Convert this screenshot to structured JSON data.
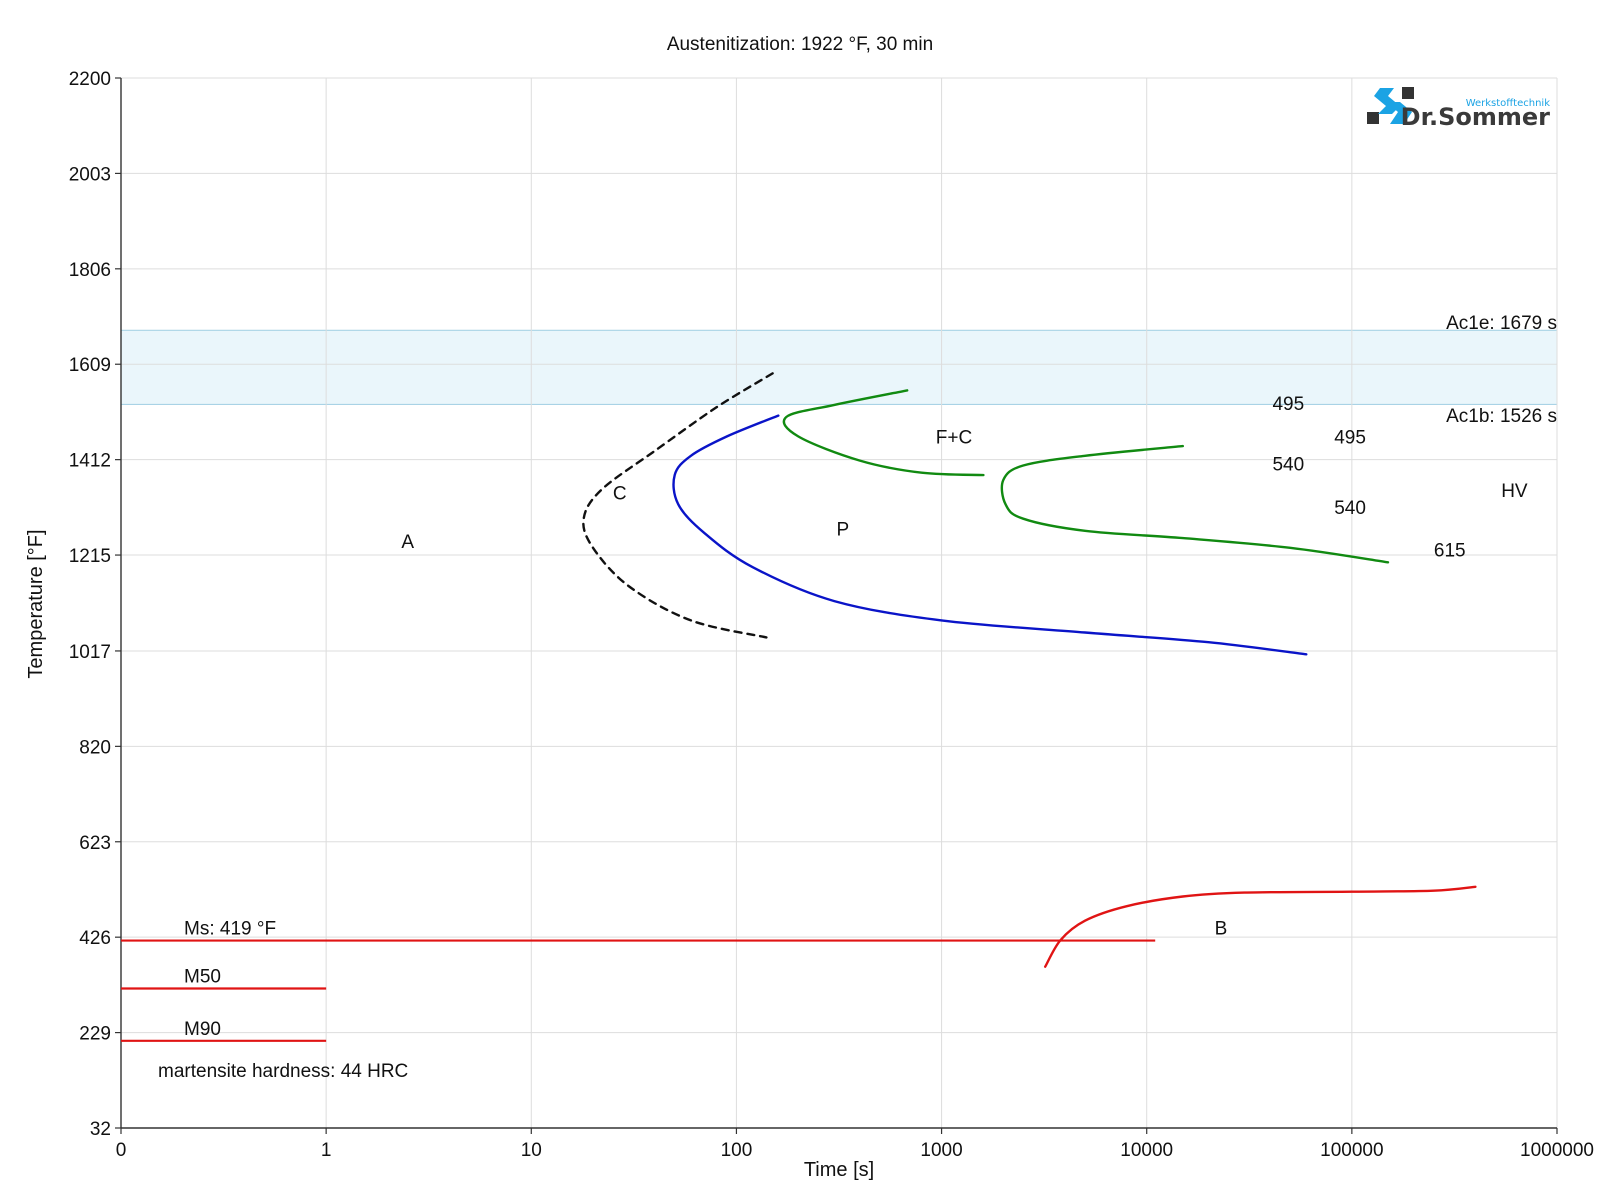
{
  "chart_data": {
    "type": "line",
    "title": "Austenitization: 1922 °F, 30 min",
    "xlabel": "Time [s]",
    "ylabel": "Temperature [°F]",
    "x_scale": "log",
    "x_ticks": [
      "0",
      "1",
      "10",
      "100",
      "1000",
      "10000",
      "100000",
      "1000000"
    ],
    "y_ticks": [
      32,
      229,
      426,
      623,
      820,
      1017,
      1215,
      1412,
      1609,
      1806,
      2003,
      2200
    ],
    "ylim": [
      32,
      2200
    ],
    "grid": true,
    "ac_band": {
      "low": 1526,
      "high": 1679,
      "color": "#eaf6fb"
    },
    "ac_labels": {
      "upper": "Ac1e: 1679 s",
      "lower": "Ac1b: 1526 s"
    },
    "series": [
      {
        "color": "#111111",
        "dash": true,
        "points": [
          [
            150,
            1590
          ],
          [
            80,
            1520
          ],
          [
            40,
            1430
          ],
          [
            22,
            1350
          ],
          [
            18,
            1290
          ],
          [
            20,
            1230
          ],
          [
            30,
            1150
          ],
          [
            60,
            1080
          ],
          [
            140,
            1045
          ]
        ]
      },
      {
        "color": "#0a14c8",
        "dash": false,
        "points": [
          [
            160,
            1503
          ],
          [
            90,
            1460
          ],
          [
            60,
            1420
          ],
          [
            50,
            1380
          ],
          [
            52,
            1320
          ],
          [
            70,
            1260
          ],
          [
            120,
            1190
          ],
          [
            300,
            1120
          ],
          [
            1000,
            1080
          ],
          [
            5000,
            1055
          ],
          [
            20000,
            1035
          ],
          [
            60000,
            1010
          ]
        ]
      },
      {
        "color": "#118a11",
        "dash": false,
        "points": [
          [
            680,
            1555
          ],
          [
            300,
            1525
          ],
          [
            175,
            1500
          ],
          [
            200,
            1460
          ],
          [
            400,
            1410
          ],
          [
            800,
            1385
          ],
          [
            1600,
            1380
          ]
        ]
      },
      {
        "color": "#118a11",
        "dash": false,
        "points": [
          [
            15000,
            1440
          ],
          [
            5000,
            1420
          ],
          [
            2500,
            1400
          ],
          [
            2000,
            1370
          ],
          [
            2050,
            1320
          ],
          [
            2500,
            1290
          ],
          [
            5000,
            1265
          ],
          [
            15000,
            1250
          ],
          [
            50000,
            1230
          ],
          [
            150000,
            1200
          ]
        ]
      },
      {
        "color": "#e01414",
        "dash": false,
        "points": [
          [
            3200,
            365
          ],
          [
            3800,
            420
          ],
          [
            5000,
            460
          ],
          [
            8000,
            490
          ],
          [
            15000,
            510
          ],
          [
            30000,
            518
          ],
          [
            100000,
            520
          ],
          [
            250000,
            522
          ],
          [
            400000,
            530
          ]
        ]
      }
    ],
    "martensite_lines": [
      {
        "label": "Ms: 419 °F",
        "y": 419,
        "x_end": 11000,
        "color": "#e01414"
      },
      {
        "label": "M50",
        "y": 320,
        "x_end": 1,
        "color": "#e01414"
      },
      {
        "label": "M90",
        "y": 212,
        "x_end": 1,
        "color": "#e01414"
      }
    ],
    "region_labels": [
      {
        "text": "A",
        "x": 2.5,
        "y": 1230
      },
      {
        "text": "C",
        "x": 27,
        "y": 1330
      },
      {
        "text": "P",
        "x": 330,
        "y": 1255
      },
      {
        "text": "F+C",
        "x": 1150,
        "y": 1445
      },
      {
        "text": "B",
        "x": 23000,
        "y": 432
      }
    ],
    "hardness_labels": [
      {
        "text": "495",
        "x": 49000,
        "y": 1515
      },
      {
        "text": "495",
        "x": 98000,
        "y": 1445
      },
      {
        "text": "540",
        "x": 49000,
        "y": 1390
      },
      {
        "text": "540",
        "x": 98000,
        "y": 1300
      },
      {
        "text": "615",
        "x": 300000,
        "y": 1212
      },
      {
        "text": "HV",
        "x": 620000,
        "y": 1335
      }
    ],
    "martensite_hardness": "martensite hardness: 44 HRC"
  },
  "logo": {
    "name": "Dr.Sommer",
    "subtitle": "Werkstofftechnik"
  }
}
